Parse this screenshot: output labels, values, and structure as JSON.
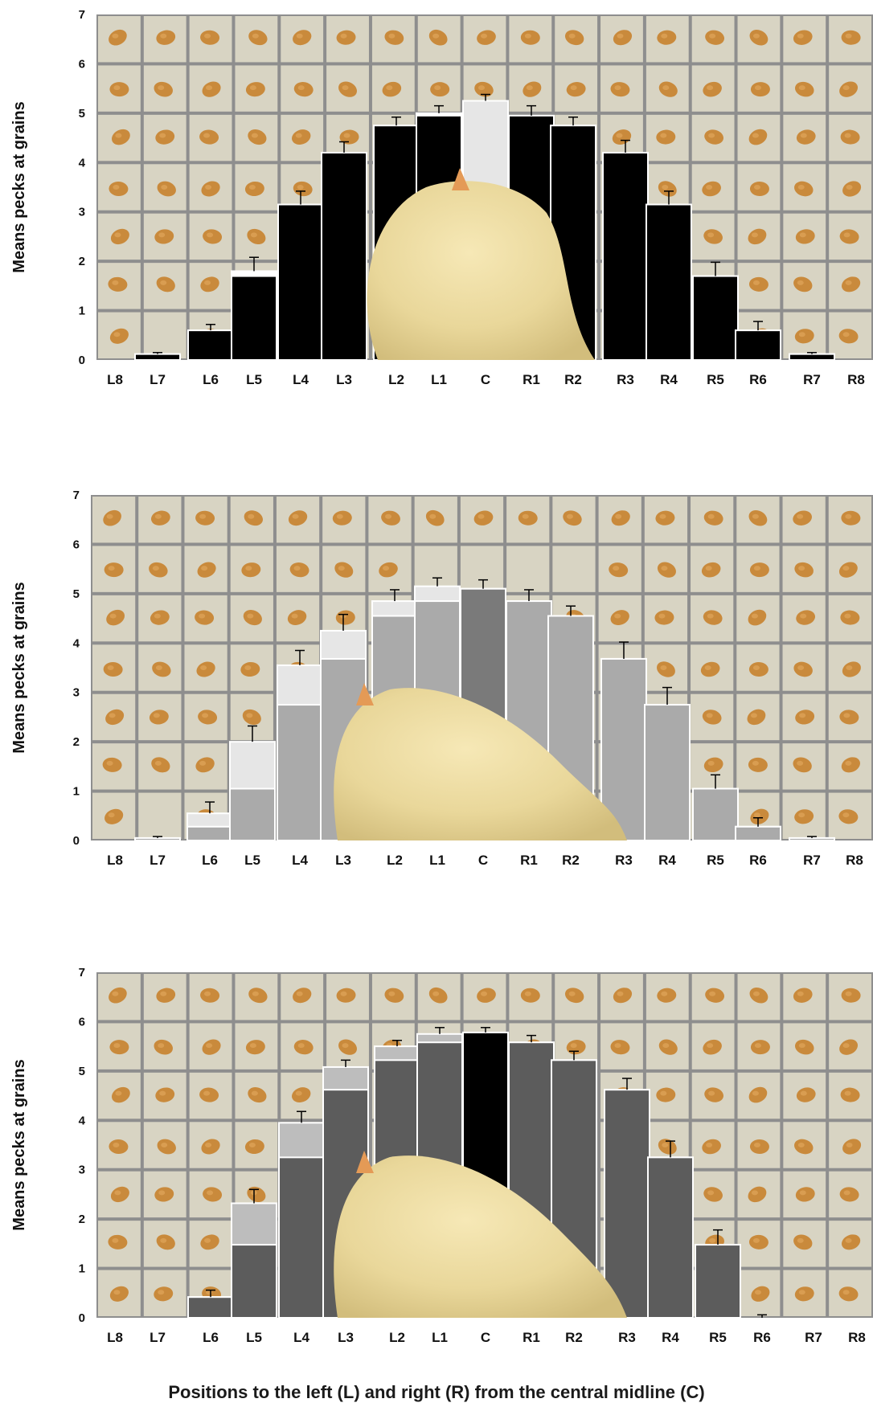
{
  "figure": {
    "xlabel": "Positions to the left (L) and right (R) from the central midline (C)"
  },
  "colors": {
    "background": "#ffffff",
    "grid_tile": "#d8d4c3",
    "grid_line": "#8e8e8e",
    "grain": "#c98a3c",
    "chick": "#eedc9e",
    "black": "#000000",
    "light_gray": "#e6e6e6",
    "mid_gray": "#aaaaaa",
    "dark_gray": "#5c5c5c"
  },
  "chart_data": [
    {
      "type": "bar",
      "ylabel": "Means pecks at grains",
      "ylim": [
        0,
        7
      ],
      "yticks": [
        0,
        1,
        2,
        3,
        4,
        5,
        6,
        7
      ],
      "grid": "off",
      "background_photo": "grain grid with chick",
      "categories": [
        "L8",
        "L7",
        "L6",
        "L5",
        "L4",
        "L3",
        "L2",
        "L1",
        "C",
        "R1",
        "R2",
        "R3",
        "R4",
        "R5",
        "R6",
        "R7",
        "R8"
      ],
      "series": [
        {
          "values": [
            0,
            0.12,
            0.6,
            1.8,
            3.15,
            4.2,
            4.75,
            5.0,
            5.25,
            4.95,
            4.75,
            4.2,
            3.15,
            1.7,
            0.6,
            0.12,
            0
          ],
          "color_keys": [
            "black",
            "black",
            "black",
            "white",
            "black",
            "black",
            "black",
            "white",
            "light_gray",
            "black",
            "black",
            "black",
            "black",
            "black",
            "black",
            "black",
            "black"
          ]
        },
        {
          "values": [
            0,
            0.12,
            0.6,
            1.7,
            3.15,
            4.2,
            4.75,
            4.95,
            5.25,
            4.95,
            4.75,
            4.2,
            3.15,
            1.7,
            0.6,
            0.12,
            0
          ]
        }
      ],
      "error_top": [
        0,
        0.15,
        0.72,
        2.08,
        3.42,
        4.42,
        4.92,
        5.15,
        5.38,
        5.15,
        4.92,
        4.45,
        3.42,
        1.98,
        0.78,
        0.15,
        0
      ]
    },
    {
      "type": "bar",
      "ylabel": "Means pecks at grains",
      "ylim": [
        0,
        7
      ],
      "yticks": [
        0,
        1,
        2,
        3,
        4,
        5,
        6,
        7
      ],
      "grid": "off",
      "background_photo": "grain grid with chick",
      "categories": [
        "L8",
        "L7",
        "L6",
        "L5",
        "L4",
        "L3",
        "L2",
        "L1",
        "C",
        "R1",
        "R2",
        "R3",
        "R4",
        "R5",
        "R6",
        "R7",
        "R8"
      ],
      "series": [
        {
          "values": [
            0,
            0.05,
            0.55,
            2.0,
            3.55,
            4.25,
            4.85,
            5.15,
            5.1,
            4.85,
            4.55,
            3.68,
            2.75,
            1.05,
            0.28,
            0.05,
            0
          ]
        },
        {
          "values": [
            0,
            0.05,
            0.28,
            1.05,
            2.75,
            3.68,
            4.55,
            4.85,
            5.1,
            4.85,
            4.55,
            3.68,
            2.75,
            1.05,
            0.28,
            0.05,
            0
          ]
        }
      ],
      "error_top": [
        0,
        0.08,
        0.78,
        2.32,
        3.85,
        4.58,
        5.08,
        5.32,
        5.28,
        5.08,
        4.75,
        4.02,
        3.1,
        1.33,
        0.46,
        0.08,
        0
      ]
    },
    {
      "type": "bar",
      "ylabel": "Means pecks at grains",
      "ylim": [
        0,
        7
      ],
      "yticks": [
        0,
        1,
        2,
        3,
        4,
        5,
        6,
        7
      ],
      "grid": "off",
      "background_photo": "grain grid with chick",
      "categories": [
        "L8",
        "L7",
        "L6",
        "L5",
        "L4",
        "L3",
        "L2",
        "L1",
        "C",
        "R1",
        "R2",
        "R3",
        "R4",
        "R5",
        "R6",
        "R7",
        "R8"
      ],
      "series": [
        {
          "values": [
            0,
            0,
            0.42,
            2.32,
            3.95,
            5.08,
            5.5,
            5.75,
            5.78,
            5.58,
            5.22,
            4.62,
            3.25,
            1.48,
            0,
            0,
            0
          ]
        },
        {
          "values": [
            0,
            0,
            0.42,
            1.48,
            3.25,
            4.62,
            5.22,
            5.58,
            5.78,
            5.58,
            5.22,
            4.62,
            3.25,
            1.48,
            0,
            0,
            0
          ]
        }
      ],
      "error_top": [
        0,
        0,
        0.56,
        2.6,
        4.18,
        5.22,
        5.62,
        5.88,
        5.88,
        5.72,
        5.4,
        4.85,
        3.58,
        1.78,
        0.06,
        0,
        0
      ]
    }
  ]
}
